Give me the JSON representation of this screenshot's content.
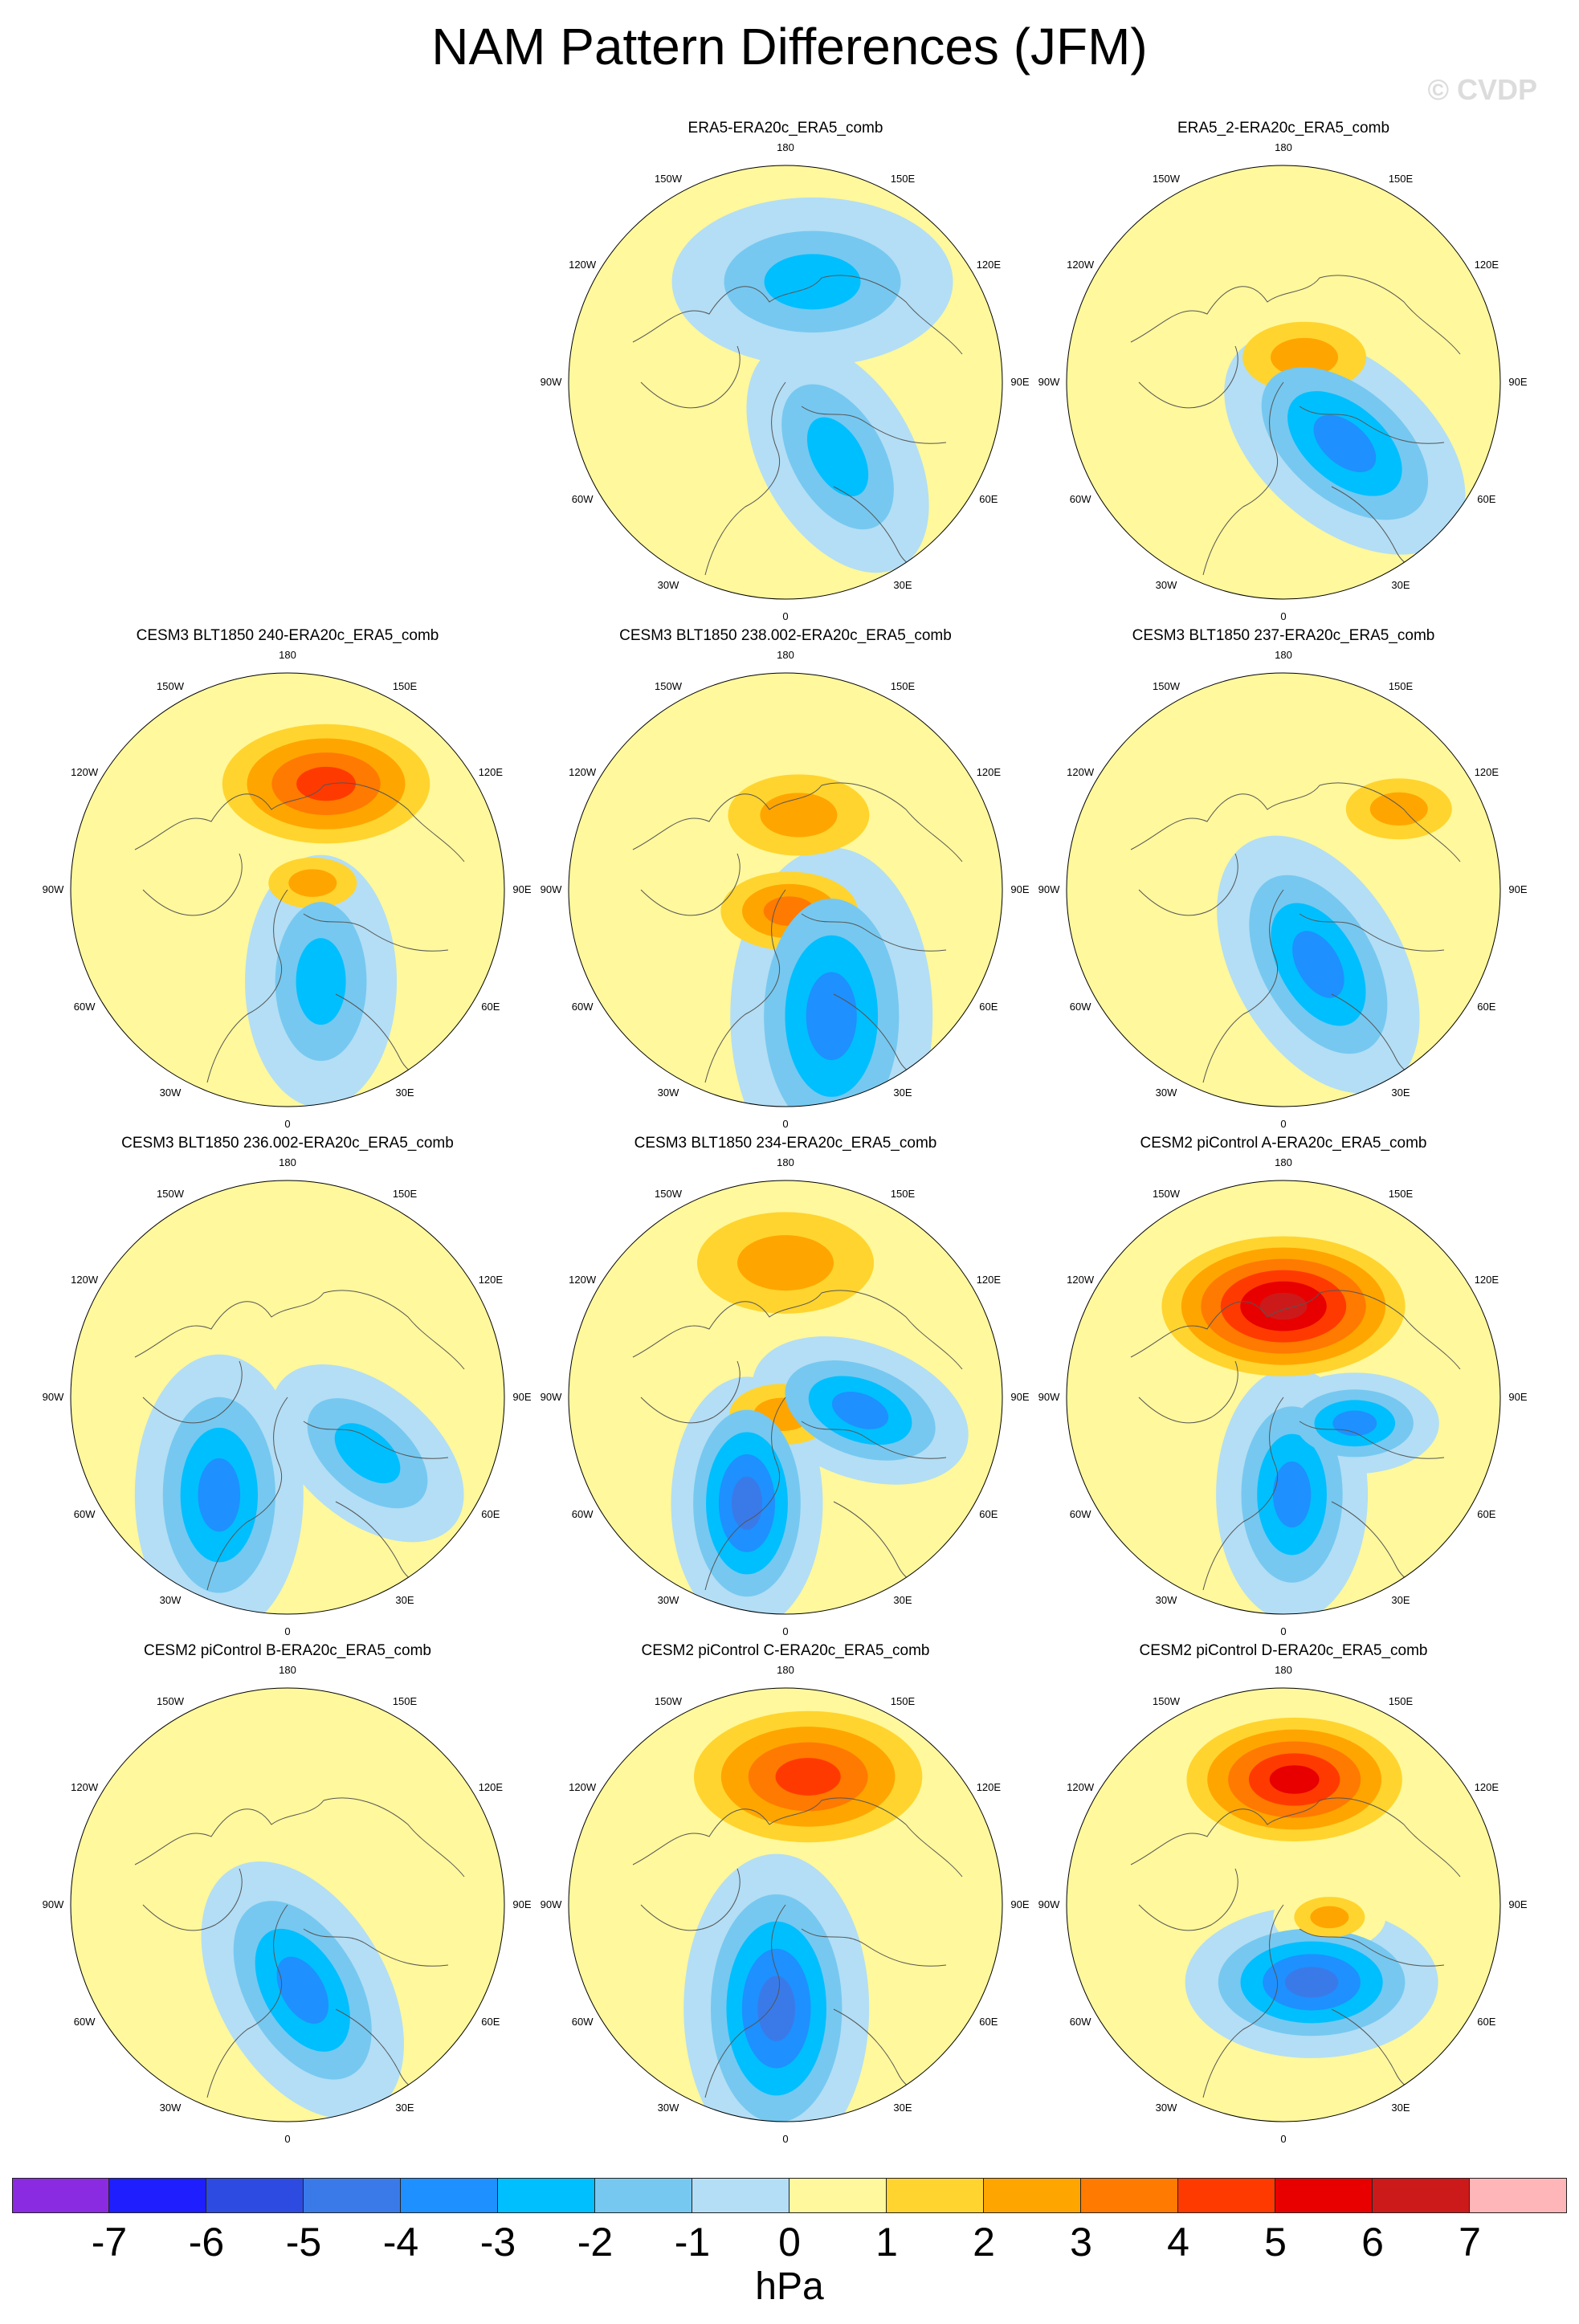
{
  "title": "NAM Pattern Differences (JFM)",
  "watermark": "© CVDP",
  "panels": [
    {
      "title": "ERA5-ERA20c_ERA5_comb",
      "anomalies": [
        {
          "lon": 165,
          "colat": 0.48,
          "ang": 0,
          "s": 1.0,
          "level": -2
        },
        {
          "lon": 35,
          "colat": 0.42,
          "ang": 60,
          "s": 0.9,
          "level": -2
        }
      ]
    },
    {
      "title": "ERA5_2-ERA20c_ERA5_comb",
      "anomalies": [
        {
          "lon": 140,
          "colat": 0.15,
          "ang": 0,
          "s": 0.7,
          "level": 2
        },
        {
          "lon": 45,
          "colat": 0.4,
          "ang": 40,
          "s": 1.0,
          "level": -3
        }
      ]
    },
    {
      "title": "CESM3 BLT1850 240-ERA20c_ERA5_comb",
      "anomalies": [
        {
          "lon": 160,
          "colat": 0.52,
          "ang": 0,
          "s": 1.0,
          "level": 4
        },
        {
          "lon": 105,
          "colat": 0.12,
          "ang": 0,
          "s": 0.5,
          "level": 2
        },
        {
          "lon": 20,
          "colat": 0.45,
          "ang": 90,
          "s": 0.9,
          "level": -2
        }
      ]
    },
    {
      "title": "CESM3 BLT1850 238.002-ERA20c_ERA5_comb",
      "anomalies": [
        {
          "lon": 170,
          "colat": 0.35,
          "ang": 0,
          "s": 0.8,
          "level": 2
        },
        {
          "lon": 10,
          "colat": 0.1,
          "ang": 0,
          "s": 0.7,
          "level": 3
        },
        {
          "lon": 20,
          "colat": 0.62,
          "ang": 90,
          "s": 1.2,
          "level": -3
        }
      ]
    },
    {
      "title": "CESM3 BLT1850 237-ERA20c_ERA5_comb",
      "anomalies": [
        {
          "lon": 25,
          "colat": 0.38,
          "ang": 60,
          "s": 1.0,
          "level": -3
        },
        {
          "lon": 125,
          "colat": 0.65,
          "ang": 0,
          "s": 0.6,
          "level": 2
        }
      ]
    },
    {
      "title": "CESM3 BLT1850 236.002-ERA20c_ERA5_comb",
      "anomalies": [
        {
          "lon": 325,
          "colat": 0.55,
          "ang": 90,
          "s": 1.0,
          "level": -3
        },
        {
          "lon": 55,
          "colat": 0.45,
          "ang": 40,
          "s": 0.8,
          "level": -2
        }
      ]
    },
    {
      "title": "CESM3 BLT1850 234-ERA20c_ERA5_comb",
      "anomalies": [
        {
          "lon": 180,
          "colat": 0.62,
          "ang": 0,
          "s": 1.0,
          "level": 2
        },
        {
          "lon": 350,
          "colat": 0.08,
          "ang": 0,
          "s": 0.6,
          "level": 2
        },
        {
          "lon": 340,
          "colat": 0.52,
          "ang": 90,
          "s": 0.9,
          "level": -4
        },
        {
          "lon": 80,
          "colat": 0.35,
          "ang": 20,
          "s": 0.8,
          "level": -3
        }
      ]
    },
    {
      "title": "CESM2 piControl A-ERA20c_ERA5_comb",
      "anomalies": [
        {
          "lon": 180,
          "colat": 0.42,
          "ang": 0,
          "s": 1.1,
          "level": 6
        },
        {
          "lon": 5,
          "colat": 0.45,
          "ang": 90,
          "s": 0.9,
          "level": -3
        },
        {
          "lon": 70,
          "colat": 0.35,
          "ang": 0,
          "s": 0.6,
          "level": -3
        }
      ]
    },
    {
      "title": "CESM2 piControl B-ERA20c_ERA5_comb",
      "anomalies": [
        {
          "lon": 10,
          "colat": 0.4,
          "ang": 60,
          "s": 1.0,
          "level": -3
        }
      ]
    },
    {
      "title": "CESM2 piControl C-ERA20c_ERA5_comb",
      "anomalies": [
        {
          "lon": 170,
          "colat": 0.6,
          "ang": 0,
          "s": 1.1,
          "level": 4
        },
        {
          "lon": 355,
          "colat": 0.48,
          "ang": 90,
          "s": 1.1,
          "level": -4
        }
      ]
    },
    {
      "title": "CESM2 piControl D-ERA20c_ERA5_comb",
      "anomalies": [
        {
          "lon": 175,
          "colat": 0.58,
          "ang": 0,
          "s": 1.0,
          "level": 5
        },
        {
          "lon": 20,
          "colat": 0.38,
          "ang": 0,
          "s": 0.9,
          "level": -4
        },
        {
          "lon": 75,
          "colat": 0.22,
          "ang": 0,
          "s": 0.4,
          "level": 2
        }
      ]
    }
  ],
  "lon_labels": [
    "180",
    "150E",
    "120E",
    "90E",
    "60E",
    "30E",
    "0",
    "30W",
    "60W",
    "90W",
    "120W",
    "150W"
  ],
  "colorbar": {
    "units": "hPa",
    "ticks": [
      "-7",
      "-6",
      "-5",
      "-4",
      "-3",
      "-2",
      "-1",
      "0",
      "1",
      "2",
      "3",
      "4",
      "5",
      "6",
      "7"
    ],
    "colors": [
      "#8a2be2",
      "#1e1eff",
      "#2d4be0",
      "#3a7ae8",
      "#1e90ff",
      "#00bfff",
      "#76c8f0",
      "#b3def5",
      "#fff89c",
      "#ffd42e",
      "#ffa500",
      "#ff7a00",
      "#ff3a00",
      "#e80000",
      "#cc1a1a",
      "#ffb6b8"
    ]
  }
}
